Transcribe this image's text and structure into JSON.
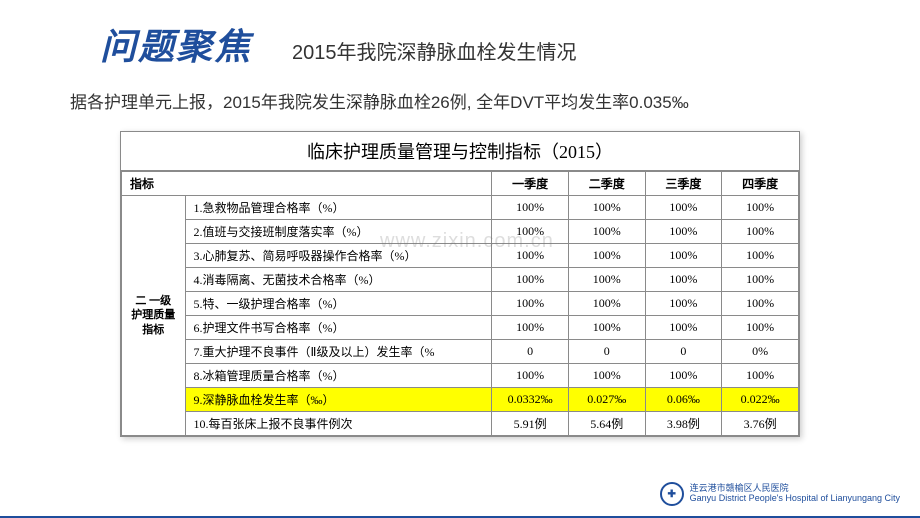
{
  "header": {
    "focus_title": "问题聚焦",
    "subtitle": "2015年我院深静脉血栓发生情况"
  },
  "intro": "据各护理单元上报，2015年我院发生深静脉血栓26例, 全年DVT平均发生率0.035‰",
  "table": {
    "title": "临床护理质量管理与控制指标（2015）",
    "category_label": "二 一级\n护理质量\n指标",
    "columns": [
      "指标",
      "一季度",
      "二季度",
      "三季度",
      "四季度"
    ],
    "rows": [
      {
        "indicator": "1.急救物品管理合格率（%）",
        "q1": "100%",
        "q2": "100%",
        "q3": "100%",
        "q4": "100%",
        "highlight": false
      },
      {
        "indicator": "2.值班与交接班制度落实率（%）",
        "q1": "100%",
        "q2": "100%",
        "q3": "100%",
        "q4": "100%",
        "highlight": false
      },
      {
        "indicator": "3.心肺复苏、简易呼吸器操作合格率（%）",
        "q1": "100%",
        "q2": "100%",
        "q3": "100%",
        "q4": "100%",
        "highlight": false
      },
      {
        "indicator": "4.消毒隔离、无菌技术合格率（%）",
        "q1": "100%",
        "q2": "100%",
        "q3": "100%",
        "q4": "100%",
        "highlight": false
      },
      {
        "indicator": "5.特、一级护理合格率（%）",
        "q1": "100%",
        "q2": "100%",
        "q3": "100%",
        "q4": "100%",
        "highlight": false
      },
      {
        "indicator": "6.护理文件书写合格率（%）",
        "q1": "100%",
        "q2": "100%",
        "q3": "100%",
        "q4": "100%",
        "highlight": false
      },
      {
        "indicator": "7.重大护理不良事件（Ⅱ级及以上）发生率（%",
        "q1": "0",
        "q2": "0",
        "q3": "0",
        "q4": "0%",
        "highlight": false
      },
      {
        "indicator": "8.冰箱管理质量合格率（%）",
        "q1": "100%",
        "q2": "100%",
        "q3": "100%",
        "q4": "100%",
        "highlight": false
      },
      {
        "indicator": "9.深静脉血栓发生率（‰）",
        "q1": "0.0332‰",
        "q2": "0.027‰",
        "q3": "0.06‰",
        "q4": "0.022‰",
        "highlight": true
      },
      {
        "indicator": "10.每百张床上报不良事件例次",
        "q1": "5.91例",
        "q2": "5.64例",
        "q3": "3.98例",
        "q4": "3.76例",
        "highlight": false
      }
    ]
  },
  "watermark": "www.zixin.com.cn",
  "footer": {
    "logo_symbol": "✚",
    "hospital_cn": "连云港市赣榆区人民医院",
    "hospital_en": "Ganyu District People's Hospital of Lianyungang City"
  },
  "colors": {
    "brand": "#1f4e9c",
    "highlight_bg": "#ffff00",
    "border": "#8a8a8a",
    "text": "#333333"
  }
}
